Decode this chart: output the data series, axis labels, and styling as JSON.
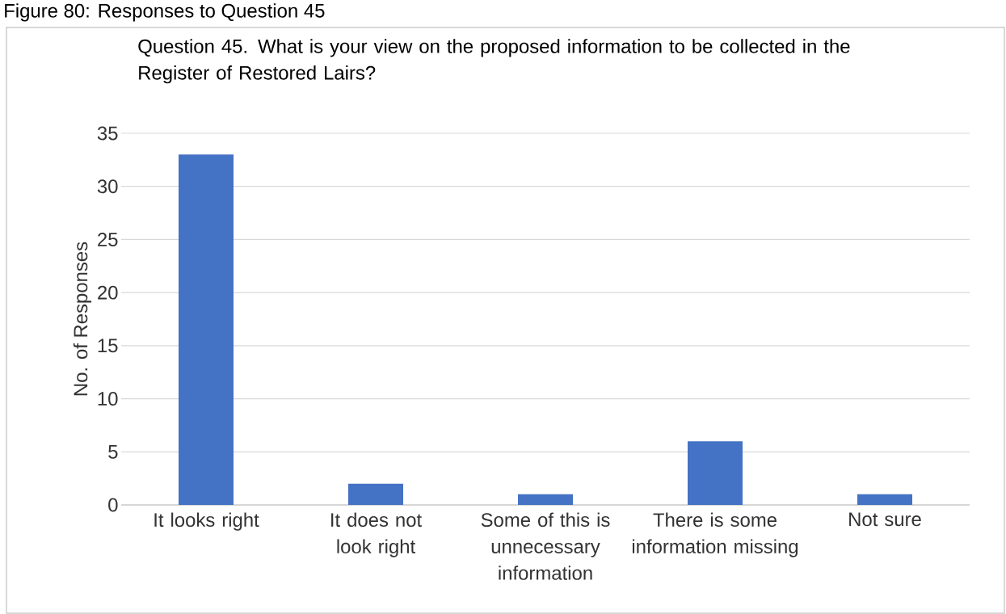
{
  "chart_data": {
    "type": "bar",
    "title": "Question 45. What is your view on the proposed information to be collected in the Register of Restored Lairs?",
    "ylabel": "No. of Responses",
    "categories": [
      "It looks right",
      "It does not look right",
      "Some of this is unnecessary information",
      "There is some information missing",
      "Not sure"
    ],
    "values": [
      33,
      2,
      1,
      6,
      1
    ],
    "color": "#4472c4",
    "ylim": [
      0,
      35
    ],
    "yticks": [
      0,
      5,
      10,
      15,
      20,
      25,
      30,
      35
    ],
    "grid": "y",
    "annotations": [
      "Figure 80: Responses to Question 45"
    ]
  }
}
